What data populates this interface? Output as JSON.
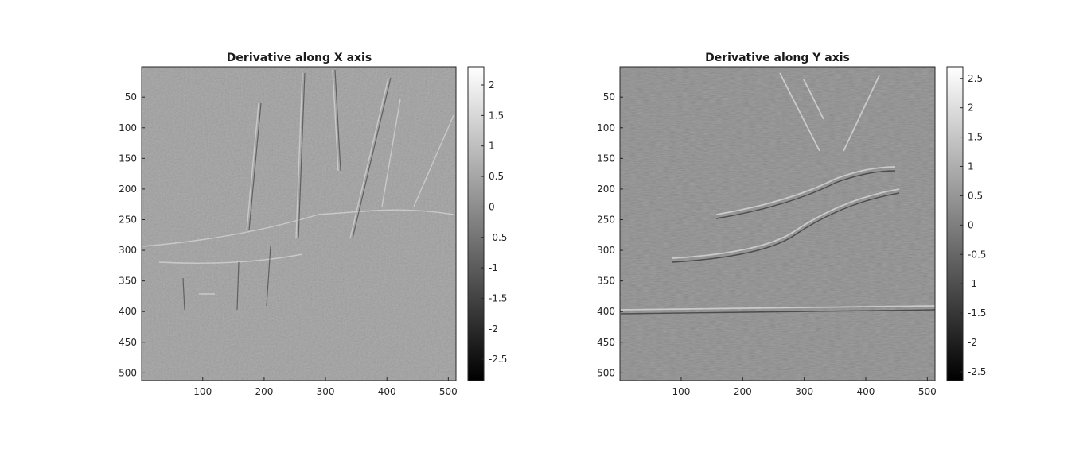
{
  "chart_data": [
    {
      "type": "heatmap",
      "title": "Derivative along X axis",
      "colormap": "gray",
      "colormap_stops": [
        "#000000",
        "#ffffff"
      ],
      "x_ticks": [
        100,
        200,
        300,
        400,
        500
      ],
      "y_ticks": [
        50,
        100,
        150,
        200,
        250,
        300,
        350,
        400,
        450,
        500
      ],
      "xlim": [
        0.5,
        512.5
      ],
      "ylim": [
        0.5,
        512.5
      ],
      "y_reversed": true,
      "colorbar": {
        "range": [
          -2.85,
          2.3
        ],
        "ticks": [
          2,
          1.5,
          1,
          0.5,
          0,
          -0.5,
          -1,
          -1.5,
          -2,
          -2.5
        ],
        "tick_labels": [
          "2",
          "1.5",
          "1",
          "0.5",
          "0",
          "-0.5",
          "-1",
          "-1.5",
          "-2",
          "-2.5"
        ]
      }
    },
    {
      "type": "heatmap",
      "title": "Derivative along Y axis",
      "colormap": "gray",
      "colormap_stops": [
        "#000000",
        "#ffffff"
      ],
      "x_ticks": [
        100,
        200,
        300,
        400,
        500
      ],
      "y_ticks": [
        50,
        100,
        150,
        200,
        250,
        300,
        350,
        400,
        450,
        500
      ],
      "xlim": [
        0.5,
        512.5
      ],
      "ylim": [
        0.5,
        512.5
      ],
      "y_reversed": true,
      "colorbar": {
        "range": [
          -2.65,
          2.7
        ],
        "ticks": [
          2.5,
          2,
          1.5,
          1,
          0.5,
          0,
          -0.5,
          -1,
          -1.5,
          -2,
          -2.5
        ],
        "tick_labels": [
          "2.5",
          "2",
          "1.5",
          "1",
          "0.5",
          "0",
          "-0.5",
          "-1",
          "-1.5",
          "-2",
          "-2.5"
        ]
      }
    }
  ]
}
